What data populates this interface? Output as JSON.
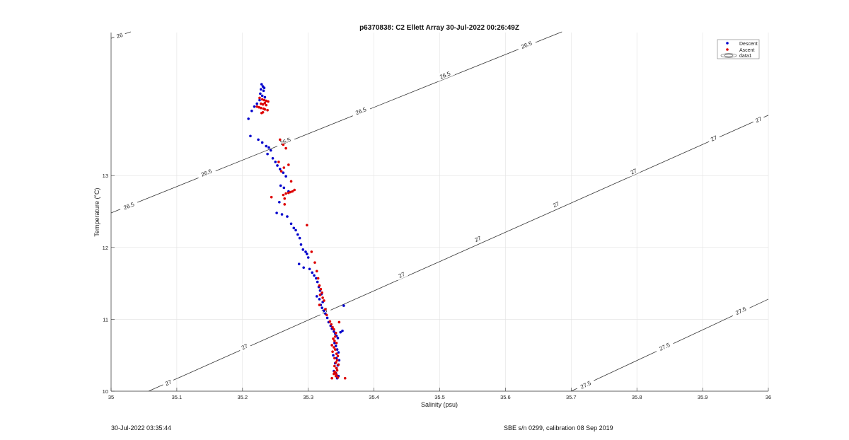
{
  "chart_data": {
    "type": "scatter",
    "title": "p6370838: C2 Ellett Array 30-Jul-2022 00:26:49Z",
    "xlabel": "Salinity (psu)",
    "ylabel": "Temperature (°C)",
    "xlim": [
      35,
      36
    ],
    "ylim": [
      10,
      14.99
    ],
    "x_ticks": [
      "35",
      "35.1",
      "35.2",
      "35.3",
      "35.4",
      "35.5",
      "35.6",
      "35.7",
      "35.8",
      "35.9",
      "36"
    ],
    "y_ticks": [
      "10",
      "11",
      "12",
      "13"
    ],
    "grid": true,
    "legend_position": "top-right",
    "legend": [
      "Descent",
      "Ascent",
      "data1"
    ],
    "colors": {
      "descent": "#0000cc",
      "ascent": "#dd0000",
      "contour": "#333333",
      "grid": "#e2e2e2"
    },
    "series": [
      {
        "name": "Descent",
        "x": [
          35.229,
          35.231,
          35.233,
          35.228,
          35.232,
          35.227,
          35.23,
          35.234,
          35.226,
          35.222,
          35.218,
          35.214,
          35.209,
          35.212,
          35.224,
          35.23,
          35.236,
          35.24,
          35.243,
          35.238,
          35.246,
          35.25,
          35.253,
          35.257,
          35.262,
          35.266,
          35.258,
          35.263,
          35.27,
          35.256,
          35.252,
          35.26,
          35.268,
          35.274,
          35.278,
          35.281,
          35.284,
          35.287,
          35.289,
          35.292,
          35.296,
          35.298,
          35.3,
          35.286,
          35.293,
          35.302,
          35.306,
          35.309,
          35.312,
          35.314,
          35.316,
          35.318,
          35.32,
          35.313,
          35.317,
          35.322,
          35.319,
          35.321,
          35.324,
          35.326,
          35.329,
          35.331,
          35.334,
          35.336,
          35.339,
          35.341,
          35.343,
          35.345,
          35.349,
          35.352,
          35.354,
          35.34,
          35.342,
          35.344,
          35.346,
          35.338,
          35.343,
          35.347,
          35.341,
          35.345,
          35.343,
          35.339,
          35.342,
          35.346,
          35.344
        ],
        "y": [
          14.27,
          14.24,
          14.22,
          14.2,
          14.18,
          14.14,
          14.11,
          14.09,
          14.05,
          14.0,
          13.96,
          13.9,
          13.79,
          13.55,
          13.5,
          13.46,
          13.41,
          13.39,
          13.35,
          13.3,
          13.24,
          13.19,
          13.14,
          13.09,
          13.04,
          12.99,
          12.86,
          12.83,
          12.78,
          12.63,
          12.48,
          12.46,
          12.43,
          12.33,
          12.27,
          12.24,
          12.18,
          12.13,
          12.04,
          11.97,
          11.94,
          11.91,
          11.86,
          11.77,
          11.72,
          11.7,
          11.65,
          11.61,
          11.57,
          11.52,
          11.45,
          11.4,
          11.35,
          11.32,
          11.28,
          11.24,
          11.2,
          11.16,
          11.12,
          11.08,
          11.02,
          10.96,
          10.91,
          10.87,
          10.83,
          10.8,
          10.77,
          10.74,
          10.82,
          10.84,
          11.19,
          10.67,
          10.63,
          10.58,
          10.54,
          10.5,
          10.46,
          10.43,
          10.39,
          10.36,
          10.32,
          10.28,
          10.25,
          10.21,
          10.18
        ]
      },
      {
        "name": "Ascent",
        "x": [
          35.226,
          35.23,
          35.233,
          35.236,
          35.239,
          35.234,
          35.228,
          35.231,
          35.236,
          35.222,
          35.225,
          35.228,
          35.232,
          35.234,
          35.238,
          35.231,
          35.229,
          35.257,
          35.262,
          35.266,
          35.255,
          35.27,
          35.263,
          35.259,
          35.262,
          35.266,
          35.27,
          35.273,
          35.276,
          35.279,
          35.274,
          35.264,
          35.244,
          35.264,
          35.298,
          35.305,
          35.31,
          35.313,
          35.315,
          35.317,
          35.319,
          35.321,
          35.318,
          35.322,
          35.324,
          35.317,
          35.326,
          35.328,
          35.333,
          35.335,
          35.337,
          35.339,
          35.342,
          35.341,
          35.338,
          35.34,
          35.343,
          35.336,
          35.339,
          35.341,
          35.337,
          35.343,
          35.345,
          35.34,
          35.344,
          35.342,
          35.346,
          35.34,
          35.343,
          35.344,
          35.341,
          35.339,
          35.342,
          35.345,
          35.343,
          35.34,
          35.336,
          35.347,
          35.356
        ],
        "y": [
          14.08,
          14.06,
          14.05,
          14.04,
          14.03,
          14.01,
          14.0,
          13.99,
          13.98,
          13.96,
          13.95,
          13.94,
          13.93,
          13.92,
          13.91,
          13.88,
          13.87,
          13.5,
          13.43,
          13.38,
          13.19,
          13.15,
          13.11,
          13.06,
          12.73,
          12.75,
          12.76,
          12.77,
          12.78,
          12.8,
          12.92,
          12.6,
          12.7,
          12.68,
          12.31,
          11.94,
          11.79,
          11.67,
          11.57,
          11.47,
          11.42,
          11.37,
          11.34,
          11.3,
          11.26,
          11.2,
          11.14,
          11.06,
          10.97,
          10.93,
          10.89,
          10.86,
          10.81,
          10.76,
          10.73,
          10.7,
          10.67,
          10.64,
          10.61,
          10.58,
          10.55,
          10.52,
          10.49,
          10.46,
          10.43,
          10.4,
          10.37,
          10.35,
          10.32,
          10.29,
          10.26,
          10.24,
          10.21,
          10.19,
          10.23,
          10.27,
          10.18,
          10.96,
          10.18
        ]
      }
    ],
    "density_contours": [
      {
        "level": "26",
        "labels": [
          "26"
        ]
      },
      {
        "level": "26.5",
        "labels": [
          "26.5",
          "26.5",
          "26.5",
          "26.5",
          "26.5",
          "26.5"
        ]
      },
      {
        "level": "27",
        "labels": [
          "27",
          "27",
          "27",
          "27",
          "27",
          "27",
          "27",
          "27",
          "27"
        ]
      },
      {
        "level": "27.5",
        "labels": [
          "27.5",
          "27.5",
          "27.5"
        ]
      }
    ]
  },
  "footer": {
    "left": "30-Jul-2022 03:35:44",
    "right": "SBE s/n 0299, calibration 08 Sep 2019"
  }
}
